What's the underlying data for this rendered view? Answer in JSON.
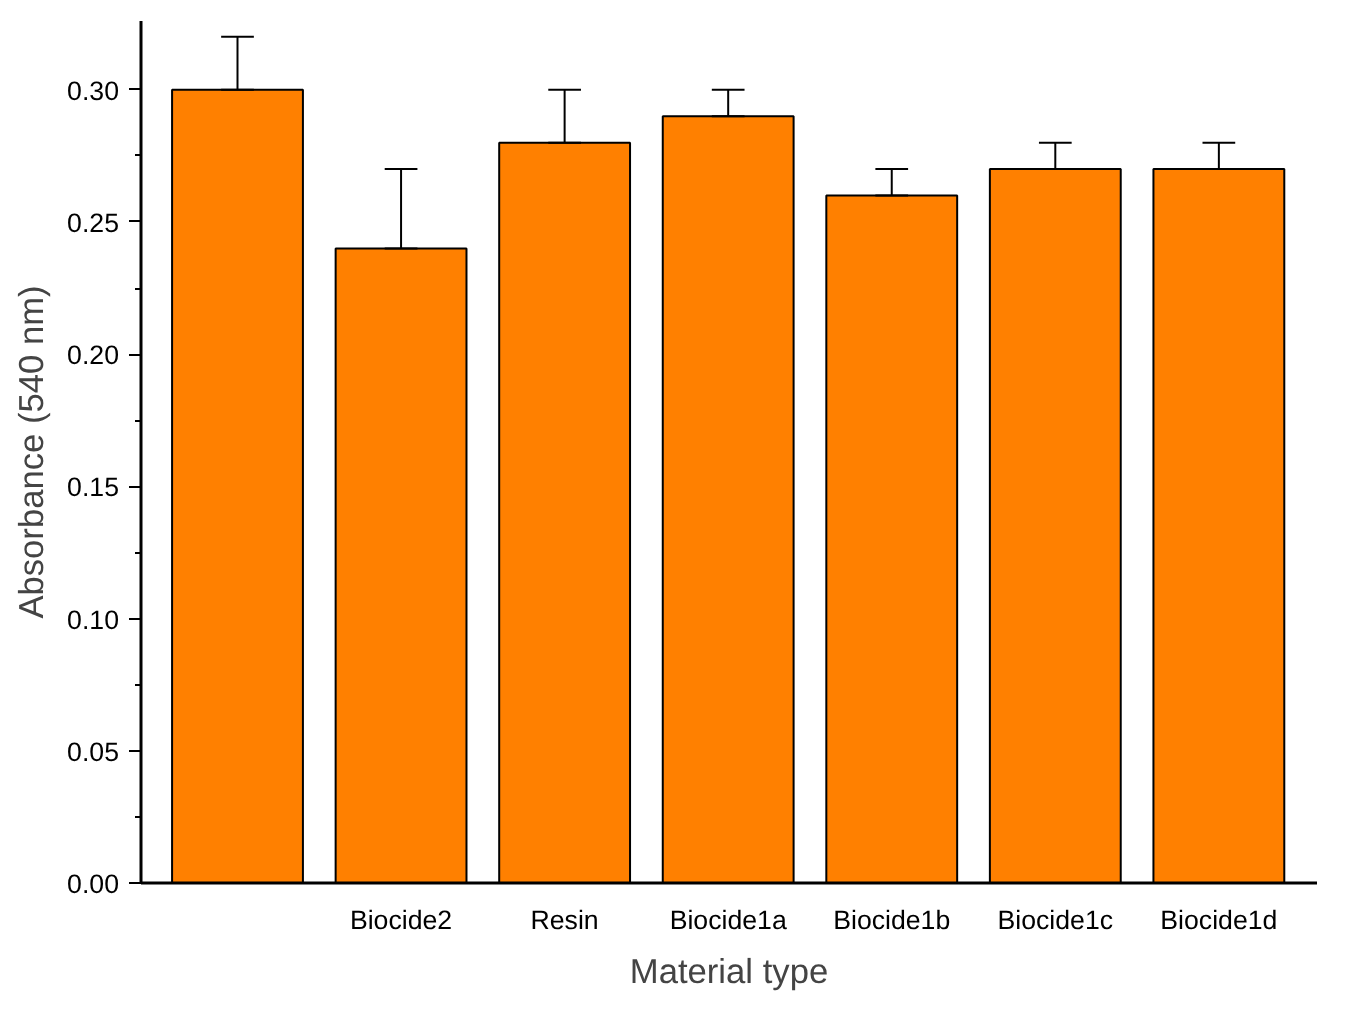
{
  "chart_data": {
    "type": "bar",
    "xlabel": "Material type",
    "ylabel": "Absorbance (540 nm)",
    "categories": [
      null,
      "Biocide2",
      "Resin",
      "Biocide1a",
      "Biocide1b",
      "Biocide1c",
      "Biocide1d"
    ],
    "values": [
      0.3,
      0.24,
      0.28,
      0.29,
      0.26,
      0.27,
      0.27
    ],
    "errors": [
      [
        0.3,
        0.32
      ],
      [
        0.24,
        0.27
      ],
      [
        0.28,
        0.3
      ],
      [
        0.29,
        0.3
      ],
      [
        0.26,
        0.27
      ],
      [
        0.27,
        0.28
      ],
      [
        0.27,
        0.28
      ]
    ],
    "color": "#ff8000",
    "ylim": [
      0,
      0.326
    ],
    "yticks": [
      {
        "value": 0,
        "label": "0.00"
      },
      {
        "value": 0.05,
        "label": "0.05"
      },
      {
        "value": 0.1,
        "label": "0.10"
      },
      {
        "value": 0.15,
        "label": "0.15"
      },
      {
        "value": 0.2,
        "label": "0.20"
      },
      {
        "value": 0.25,
        "label": "0.25"
      },
      {
        "value": 0.3,
        "label": "0.30"
      }
    ],
    "grid": false
  }
}
